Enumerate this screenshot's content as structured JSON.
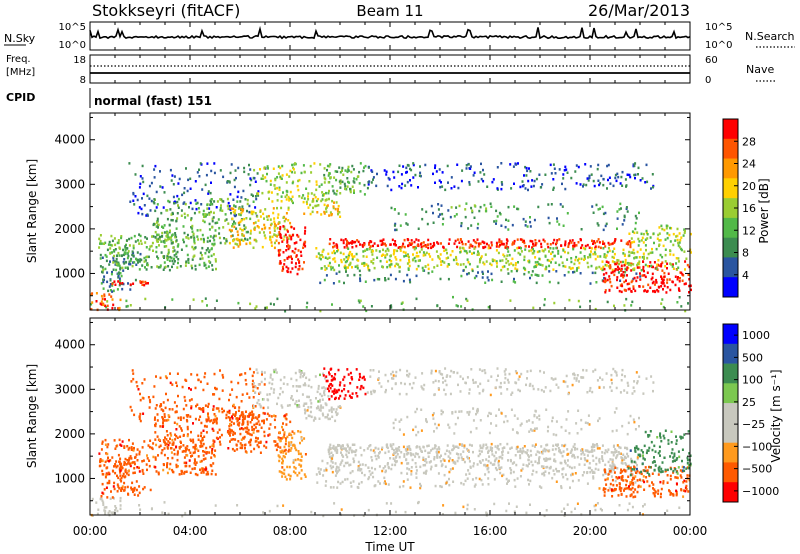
{
  "header": {
    "station": "Stokkseyri (fitACF)",
    "beam": "Beam 11",
    "date": "26/Mar/2013"
  },
  "noise_panel": {
    "left_label": "N.Sky",
    "right_label": "N.Search",
    "left_ticks": [
      "10^5",
      "10^0"
    ],
    "right_ticks": [
      "10^5",
      "10^0"
    ]
  },
  "freq_panel": {
    "left_label_line1": "Freq.",
    "left_label_line2": "[MHz]",
    "right_label": "Nave",
    "left_ticks": [
      "18",
      "8"
    ],
    "right_ticks": [
      "60",
      "0"
    ]
  },
  "cpid": {
    "label": "CPID",
    "value": "normal (fast) 151"
  },
  "colors": {
    "power": [
      "#0000ff",
      "#2a55a0",
      "#3c8c50",
      "#52b948",
      "#9acd32",
      "#ffd000",
      "#ff9900",
      "#ff5500",
      "#ff0000"
    ],
    "velocity": [
      "#ff0000",
      "#ff5a00",
      "#ff9a1e",
      "#c8c8be",
      "#c8c8be",
      "#7cc850",
      "#3c8c50",
      "#2a55a0",
      "#0000ff"
    ]
  },
  "chart_data": [
    {
      "type": "heatmap",
      "name": "power",
      "ylabel": "Slant Range [km]",
      "yticks": [
        1000,
        2000,
        3000,
        4000
      ],
      "ylim": [
        180,
        4600
      ],
      "xlim": [
        0,
        24
      ],
      "colorbar": {
        "label": "Power [dB]",
        "ticks": [
          "4",
          "8",
          "12",
          "16",
          "20",
          "24",
          "28"
        ],
        "range": [
          0,
          32
        ]
      }
    },
    {
      "type": "heatmap",
      "name": "velocity",
      "ylabel": "Slant Range [km]",
      "yticks": [
        1000,
        2000,
        3000,
        4000
      ],
      "ylim": [
        180,
        4600
      ],
      "xlim": [
        0,
        24
      ],
      "colorbar": {
        "label": "Velocity [m s⁻¹]",
        "ticks": [
          "1000",
          "500",
          "100",
          "25",
          "−25",
          "−100",
          "−500",
          "−1000"
        ]
      }
    }
  ],
  "x_axis": {
    "ticks": [
      "00:00",
      "04:00",
      "08:00",
      "12:00",
      "16:00",
      "20:00",
      "00:00"
    ],
    "label": "Time UT"
  }
}
